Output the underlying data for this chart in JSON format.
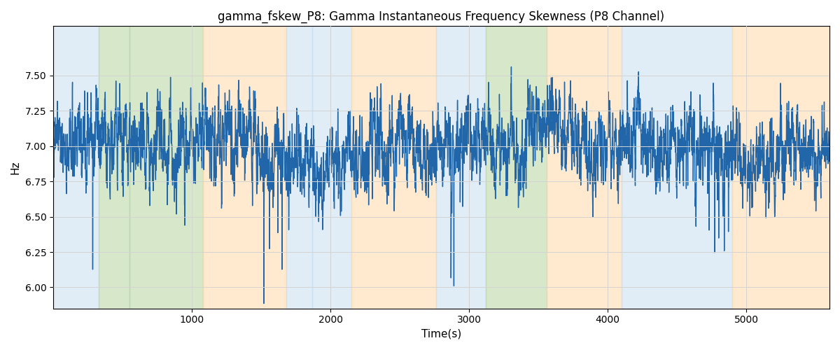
{
  "title": "gamma_fskew_P8: Gamma Instantaneous Frequency Skewness (P8 Channel)",
  "xlabel": "Time(s)",
  "ylabel": "Hz",
  "ylim": [
    5.85,
    7.85
  ],
  "xlim": [
    0,
    5600
  ],
  "seed": 42,
  "n_points": 5600,
  "mean": 7.0,
  "line_color": "#2166a8",
  "line_width": 1.0,
  "background_color": "#ffffff",
  "title_fontsize": 12,
  "label_fontsize": 11,
  "bands": [
    {
      "xmin": 0,
      "xmax": 330,
      "color": "#c8ddf0",
      "alpha": 0.55
    },
    {
      "xmin": 330,
      "xmax": 550,
      "color": "#b5d4a0",
      "alpha": 0.55
    },
    {
      "xmin": 550,
      "xmax": 1080,
      "color": "#b5d4a0",
      "alpha": 0.55
    },
    {
      "xmin": 1080,
      "xmax": 1680,
      "color": "#ffd8a8",
      "alpha": 0.55
    },
    {
      "xmin": 1680,
      "xmax": 1870,
      "color": "#c8ddf0",
      "alpha": 0.55
    },
    {
      "xmin": 1870,
      "xmax": 2150,
      "color": "#c8ddf0",
      "alpha": 0.55
    },
    {
      "xmin": 2150,
      "xmax": 2760,
      "color": "#ffd8a8",
      "alpha": 0.55
    },
    {
      "xmin": 2760,
      "xmax": 3120,
      "color": "#c8ddf0",
      "alpha": 0.55
    },
    {
      "xmin": 3120,
      "xmax": 3560,
      "color": "#b5d4a0",
      "alpha": 0.55
    },
    {
      "xmin": 3560,
      "xmax": 4100,
      "color": "#ffd8a8",
      "alpha": 0.55
    },
    {
      "xmin": 4100,
      "xmax": 4900,
      "color": "#c8ddf0",
      "alpha": 0.55
    },
    {
      "xmin": 4900,
      "xmax": 5600,
      "color": "#ffd8a8",
      "alpha": 0.55
    }
  ],
  "yticks": [
    6.0,
    6.25,
    6.5,
    6.75,
    7.0,
    7.25,
    7.5
  ],
  "xticks": [
    1000,
    2000,
    3000,
    4000,
    5000
  ]
}
